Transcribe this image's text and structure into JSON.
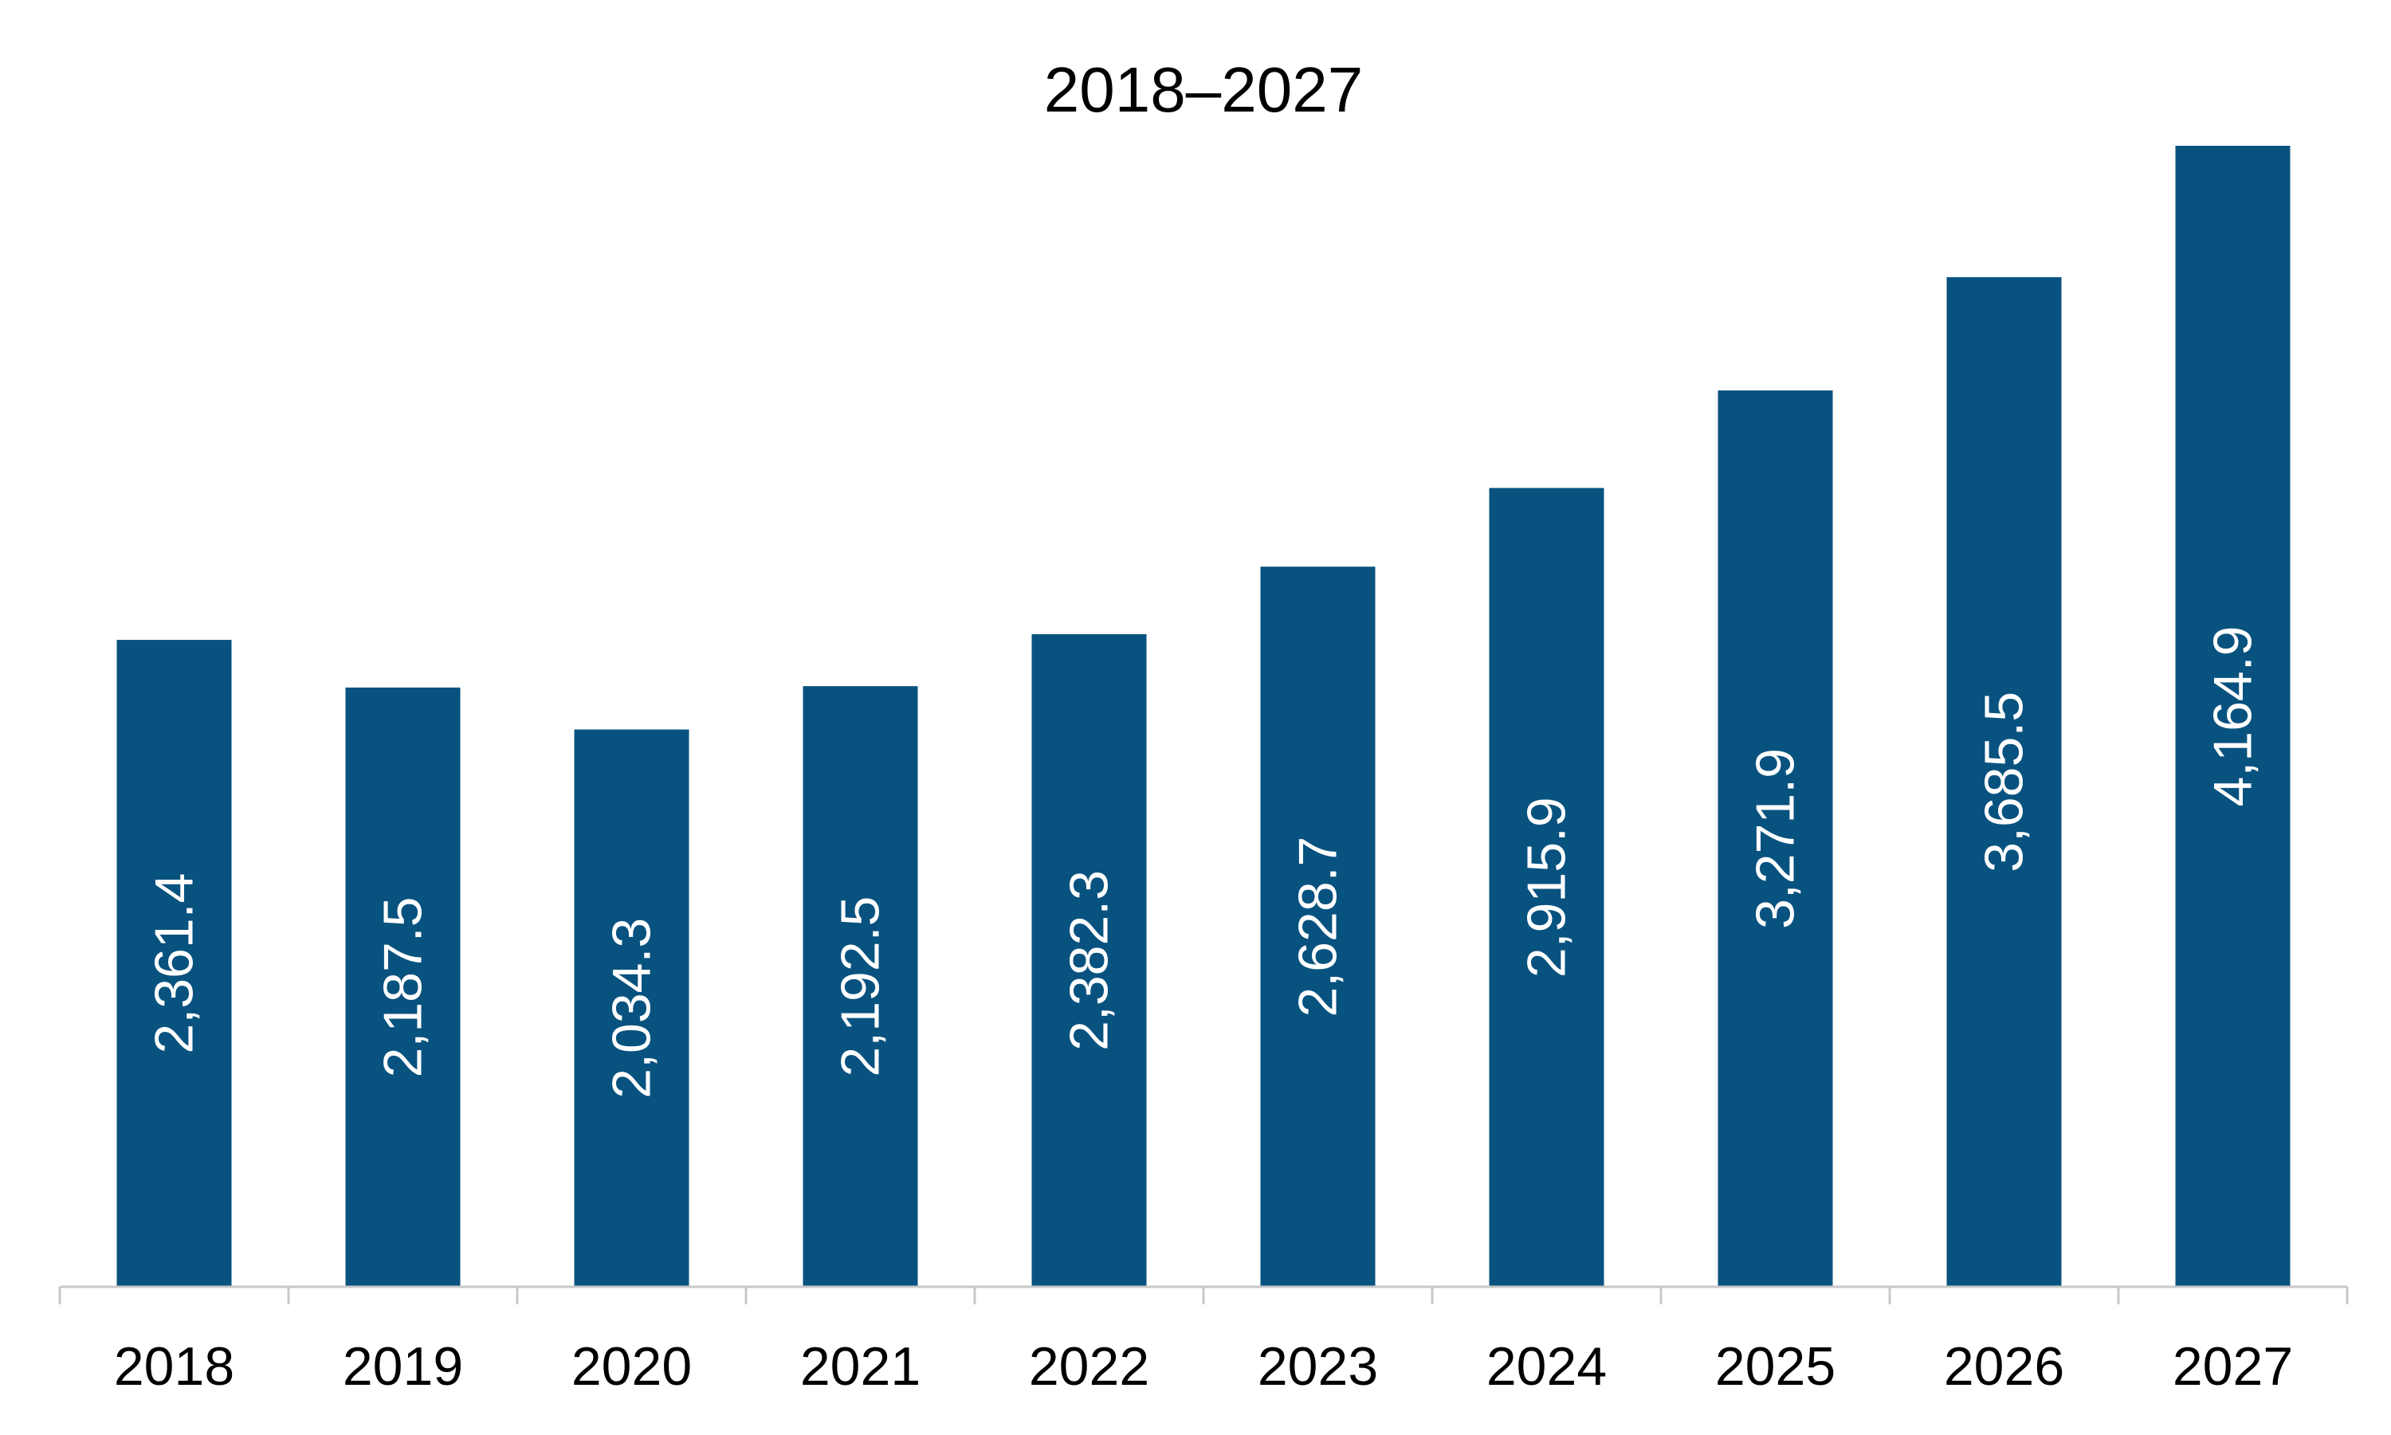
{
  "colors": {
    "bar": "#08527f",
    "axis": "#c8c8c8",
    "label_inside": "#ffffff",
    "text": "#000000"
  },
  "chart_data": {
    "type": "bar",
    "title": "2018–2027",
    "xlabel": "",
    "ylabel": "",
    "categories": [
      "2018",
      "2019",
      "2020",
      "2021",
      "2022",
      "2023",
      "2024",
      "2025",
      "2026",
      "2027"
    ],
    "values": [
      2361.4,
      2187.5,
      2034.3,
      2192.5,
      2382.3,
      2628.7,
      2915.9,
      3271.9,
      3685.5,
      4164.9
    ],
    "value_labels": [
      "2,361.4",
      "2,187.5",
      "2,034.3",
      "2,192.5",
      "2,382.3",
      "2,628.7",
      "2,915.9",
      "3,271.9",
      "3,685.5",
      "4,164.9"
    ],
    "ylim": [
      0,
      4200
    ],
    "grid": false,
    "legend": "none",
    "data_label_orientation": "vertical"
  }
}
